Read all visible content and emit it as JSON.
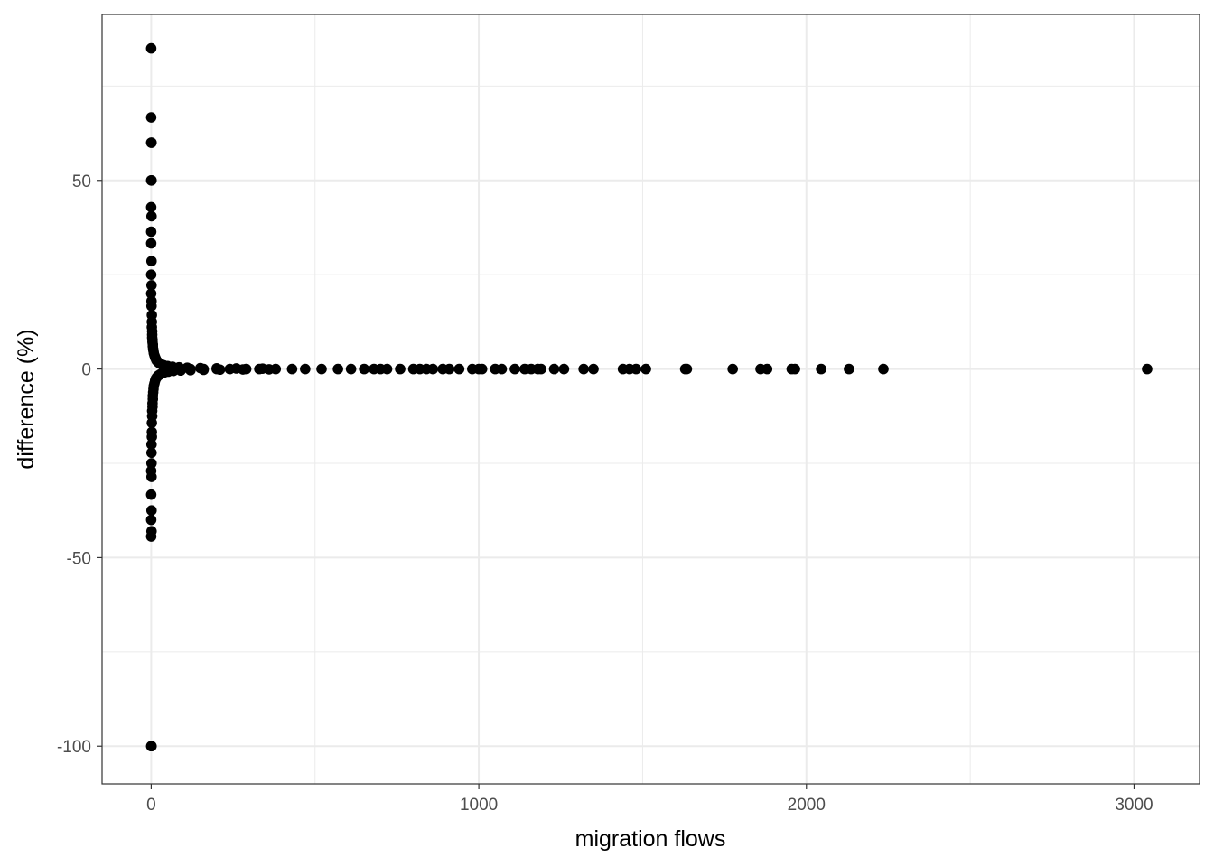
{
  "chart_data": {
    "type": "scatter",
    "title": "",
    "xlabel": "migration flows",
    "ylabel": "difference (%)",
    "xlim": [
      -150,
      3200
    ],
    "ylim": [
      -110,
      94
    ],
    "x_ticks": [
      0,
      1000,
      2000,
      3000
    ],
    "x_tick_labels": [
      "0",
      "1000",
      "2000",
      "3000"
    ],
    "y_ticks": [
      -100,
      -50,
      0,
      50
    ],
    "y_tick_labels": [
      "-100",
      "-50",
      "0",
      "50"
    ],
    "grid": true,
    "legend": "none",
    "colors": {
      "points": "#000000",
      "grid": "#ebebeb",
      "panel_border": "#333333",
      "tick_text": "#4d4d4d"
    },
    "series": [
      {
        "points": [
          [
            0,
            85
          ],
          [
            0,
            66.7
          ],
          [
            0,
            60
          ],
          [
            1,
            60
          ],
          [
            0,
            50
          ],
          [
            1,
            50
          ],
          [
            0,
            42.9
          ],
          [
            1,
            40.5
          ],
          [
            0,
            36.4
          ],
          [
            0,
            33.3
          ],
          [
            1,
            28.6
          ],
          [
            0,
            25
          ],
          [
            1,
            22.2
          ],
          [
            0,
            20
          ],
          [
            1,
            18
          ],
          [
            1,
            16.7
          ],
          [
            2,
            14.3
          ],
          [
            2,
            12.5
          ],
          [
            2,
            11.1
          ],
          [
            3,
            10
          ],
          [
            3,
            9.1
          ],
          [
            3,
            8.3
          ],
          [
            4,
            7.7
          ],
          [
            4,
            7.1
          ],
          [
            5,
            6.5
          ],
          [
            5,
            6
          ],
          [
            6,
            5.3
          ],
          [
            7,
            4.8
          ],
          [
            8,
            4.2
          ],
          [
            10,
            3.6
          ],
          [
            12,
            3.1
          ],
          [
            14,
            2.7
          ],
          [
            16,
            2.3
          ],
          [
            20,
            1.9
          ],
          [
            24,
            1.6
          ],
          [
            30,
            1.3
          ],
          [
            38,
            1.0
          ],
          [
            50,
            0.8
          ],
          [
            65,
            0.6
          ],
          [
            85,
            0.45
          ],
          [
            110,
            0.35
          ],
          [
            150,
            0.25
          ],
          [
            200,
            0.2
          ],
          [
            260,
            0.15
          ],
          [
            340,
            0.1
          ],
          [
            0,
            -100
          ],
          [
            1,
            -100
          ],
          [
            0,
            -44.4
          ],
          [
            1,
            -43
          ],
          [
            0,
            -40
          ],
          [
            1,
            -37.5
          ],
          [
            0,
            -33.3
          ],
          [
            1,
            -28.6
          ],
          [
            0,
            -27
          ],
          [
            1,
            -25
          ],
          [
            1,
            -22.2
          ],
          [
            1,
            -20
          ],
          [
            2,
            -18
          ],
          [
            2,
            -16.7
          ],
          [
            2,
            -14.3
          ],
          [
            3,
            -12.5
          ],
          [
            3,
            -11.1
          ],
          [
            4,
            -10
          ],
          [
            4,
            -9.1
          ],
          [
            5,
            -8
          ],
          [
            5,
            -7.1
          ],
          [
            6,
            -6.2
          ],
          [
            7,
            -5.3
          ],
          [
            8,
            -4.5
          ],
          [
            10,
            -3.8
          ],
          [
            12,
            -3.1
          ],
          [
            14,
            -2.6
          ],
          [
            17,
            -2.2
          ],
          [
            21,
            -1.8
          ],
          [
            26,
            -1.5
          ],
          [
            32,
            -1.2
          ],
          [
            40,
            -0.9
          ],
          [
            52,
            -0.7
          ],
          [
            68,
            -0.5
          ],
          [
            90,
            -0.4
          ],
          [
            120,
            -0.3
          ],
          [
            160,
            -0.22
          ],
          [
            210,
            -0.16
          ],
          [
            280,
            -0.11
          ],
          [
            360,
            -0.08
          ],
          [
            50,
            0
          ],
          [
            80,
            0
          ],
          [
            120,
            0
          ],
          [
            160,
            0
          ],
          [
            200,
            0
          ],
          [
            240,
            0
          ],
          [
            290,
            0
          ],
          [
            330,
            0
          ],
          [
            380,
            0
          ],
          [
            430,
            0
          ],
          [
            470,
            0
          ],
          [
            520,
            0
          ],
          [
            570,
            0
          ],
          [
            610,
            0
          ],
          [
            650,
            0
          ],
          [
            680,
            0
          ],
          [
            700,
            0
          ],
          [
            720,
            0
          ],
          [
            760,
            0
          ],
          [
            800,
            0
          ],
          [
            820,
            0
          ],
          [
            840,
            0
          ],
          [
            860,
            0
          ],
          [
            890,
            0
          ],
          [
            910,
            0
          ],
          [
            940,
            0
          ],
          [
            980,
            0
          ],
          [
            1000,
            0
          ],
          [
            1010,
            0
          ],
          [
            1050,
            0
          ],
          [
            1070,
            0
          ],
          [
            1110,
            0
          ],
          [
            1140,
            0
          ],
          [
            1160,
            0
          ],
          [
            1180,
            0
          ],
          [
            1190,
            0
          ],
          [
            1230,
            0
          ],
          [
            1260,
            0
          ],
          [
            1320,
            0
          ],
          [
            1350,
            0
          ],
          [
            1440,
            0
          ],
          [
            1460,
            0
          ],
          [
            1480,
            0
          ],
          [
            1510,
            0
          ],
          [
            1630,
            0
          ],
          [
            1635,
            0
          ],
          [
            1775,
            0
          ],
          [
            1860,
            0
          ],
          [
            1880,
            0
          ],
          [
            1955,
            0
          ],
          [
            1965,
            0
          ],
          [
            2045,
            0
          ],
          [
            2130,
            0
          ],
          [
            2235,
            0
          ],
          [
            3040,
            0
          ]
        ]
      }
    ]
  }
}
